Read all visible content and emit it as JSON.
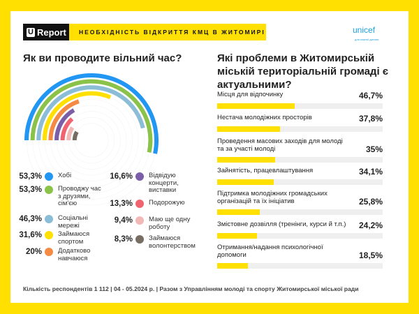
{
  "header": {
    "logo_u": "U",
    "logo_text": "Report",
    "title": "НЕОБХІДНІСТЬ ВІДКРИТТЯ КМЦ В ЖИТОМИРІ",
    "partner": "unicef",
    "partner_sub": "для кожної дитини"
  },
  "chart_data": [
    {
      "type": "radial-bar",
      "title": "Як ви проводите вільний час?",
      "scale_max": 100,
      "categories": [
        "Хобі",
        "Проводжу час з друзями, сім'єю",
        "Соціальні мережі",
        "Займаюся спортом",
        "Додатково навчаюся",
        "Відвідую концерти, виставки",
        "Подорожую",
        "Маю ще одну роботу",
        "Займаюся волонтерством"
      ],
      "values": [
        53.3,
        53.3,
        46.3,
        31.6,
        20,
        16.6,
        13.3,
        9.4,
        8.3
      ],
      "labels": [
        "53,3%",
        "53,3%",
        "46,3%",
        "31,6%",
        "20%",
        "16,6%",
        "13,3%",
        "9,4%",
        "8,3%"
      ],
      "colors": [
        "#2196f3",
        "#8bc34a",
        "#8bbdd6",
        "#ffe000",
        "#f58a45",
        "#7b5ea7",
        "#ef6470",
        "#f2b8b5",
        "#776e63"
      ]
    },
    {
      "type": "bar",
      "orientation": "horizontal",
      "title": "Які проблеми в Житомирській міській територіальній громаді є актуальними?",
      "xlim": [
        0,
        100
      ],
      "categories": [
        "Місця для відпочинку",
        "Нестача молодіжних просторів",
        "Проведення масових заходів для молоді та за участі молоді",
        "Зайнятість, працевлаштування",
        "Підтримка молодіжних громадських організацій та їх ініціатив",
        "Змістовне дозвілля (тренінги, курси й т.п.)",
        "Отримання/надання психологічної допомоги"
      ],
      "values": [
        46.7,
        37.8,
        35,
        34.1,
        25.8,
        24.2,
        18.5
      ],
      "labels": [
        "46,7%",
        "37,8%",
        "35%",
        "34,1%",
        "25,8%",
        "24,2%",
        "18,5%"
      ],
      "color": "#ffe000"
    }
  ],
  "footer": "Кількість респондентів 1 112 | 04 - 05.2024 р. | Разом з Управлінням молоді та спорту Житомирської міської ради"
}
